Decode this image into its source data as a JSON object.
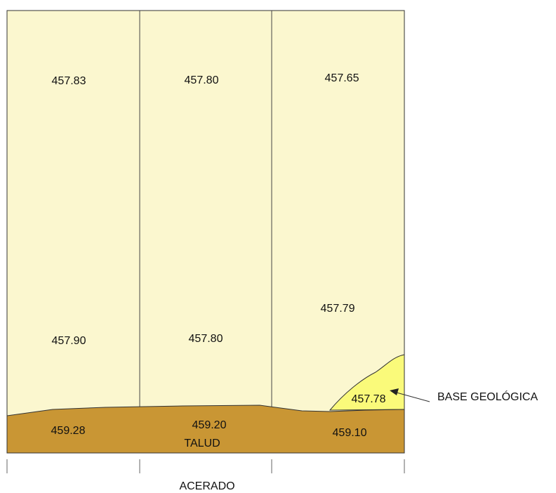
{
  "colors": {
    "parcel_fill": "#fbf7cf",
    "talud_fill": "#c99634",
    "base_fill": "#fafa7a",
    "line": "#333333"
  },
  "parcels": {
    "upper": [
      "457.83",
      "457.80",
      "457.65"
    ],
    "lower": [
      "457.90",
      "457.80",
      "457.79"
    ]
  },
  "talud": {
    "values": [
      "459.28",
      "459.20",
      "459.10"
    ],
    "label": "TALUD"
  },
  "base_geologica": {
    "value": "457.78",
    "label": "BASE GEOLÓGICA"
  },
  "acerado_label": "ACERADO"
}
